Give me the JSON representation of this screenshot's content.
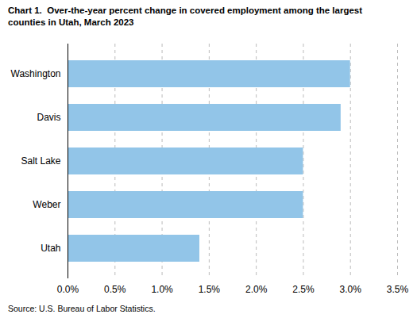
{
  "chart_data": {
    "type": "bar",
    "orientation": "horizontal",
    "title": "Chart 1.  Over-the-year percent change in covered employment among the largest\ncounties in Utah, March 2023",
    "caption": "Source: U.S. Bureau of Labor Statistics.",
    "categories": [
      "Utah",
      "Weber",
      "Salt Lake",
      "Davis",
      "Washington"
    ],
    "values": [
      0.014,
      0.025,
      0.025,
      0.029,
      0.03
    ],
    "color": "#92C5E8",
    "xlim": [
      0,
      0.035
    ],
    "xticks": [
      {
        "value": 0.0,
        "label": "0.0%"
      },
      {
        "value": 0.005,
        "label": "0.5%"
      },
      {
        "value": 0.01,
        "label": "1.0%"
      },
      {
        "value": 0.015,
        "label": "1.5%"
      },
      {
        "value": 0.02,
        "label": "2.0%"
      },
      {
        "value": 0.025,
        "label": "2.5%"
      },
      {
        "value": 0.03,
        "label": "3.0%"
      },
      {
        "value": 0.035,
        "label": "3.5%"
      }
    ],
    "grid": true
  }
}
